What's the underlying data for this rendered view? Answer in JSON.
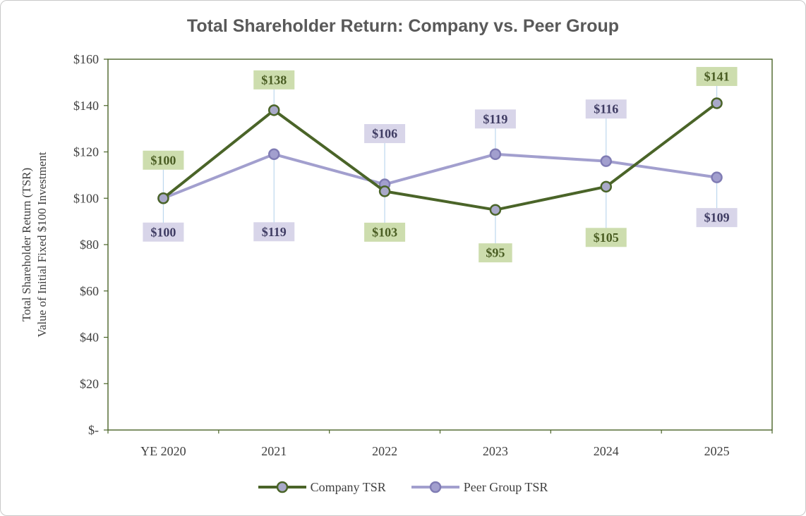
{
  "chart_data": {
    "type": "line",
    "title": "Total Shareholder Return: Company vs. Peer Group",
    "ylabel_lines": [
      "Total Shareholder Return (TSR)",
      "Value of Initial Fixed $100 Investment"
    ],
    "categories": [
      "YE 2020",
      "2021",
      "2022",
      "2023",
      "2024",
      "2025"
    ],
    "ylim": [
      0,
      160
    ],
    "y_ticks": {
      "values": [
        0,
        20,
        40,
        60,
        80,
        100,
        120,
        140,
        160
      ],
      "labels": [
        "$-",
        "$20",
        "$40",
        "$60",
        "$80",
        "$100",
        "$120",
        "$140",
        "$160"
      ]
    },
    "grid": false,
    "legend_position": "bottom",
    "colors": {
      "axis": "#4a6428",
      "tick_text": "#404040",
      "title_text": "#595959",
      "leader_line": "#bdd7ee"
    },
    "series": [
      {
        "name": "Company TSR",
        "values": [
          100,
          138,
          103,
          95,
          105,
          141
        ],
        "labels": [
          "$100",
          "$138",
          "$103",
          "$95",
          "$105",
          "$141"
        ],
        "line_color": "#4a6428",
        "marker_fill": "#a9a9c9",
        "marker_stroke": "#4a6428",
        "label_bg": "#cdddae",
        "label_text_color": "#4a5d23",
        "label_offsets": [
          -54,
          -43,
          58,
          61,
          72,
          -38
        ]
      },
      {
        "name": "Peer Group TSR",
        "values": [
          100,
          119,
          106,
          119,
          116,
          109
        ],
        "labels": [
          "$100",
          "$119",
          "$106",
          "$119",
          "$116",
          "$109"
        ],
        "line_color": "#a29fce",
        "marker_fill": "#a29fce",
        "marker_stroke": "#807cb4",
        "label_bg": "#d8d5e9",
        "label_text_color": "#3f3c63",
        "label_offsets": [
          48,
          110,
          -72,
          -50,
          -74,
          57
        ]
      }
    ]
  }
}
